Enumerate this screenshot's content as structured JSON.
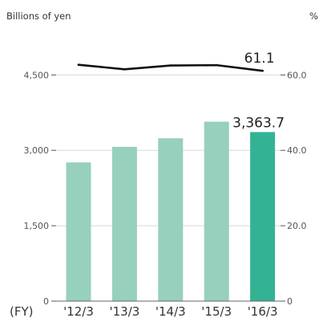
{
  "chart_data": {
    "type": "bar",
    "left_axis_label": "Billions of yen",
    "right_axis_label": "%",
    "x_prefix": "(FY)",
    "categories": [
      "'12/3",
      "'13/3",
      "'14/3",
      "'15/3",
      "'16/3"
    ],
    "bars": {
      "values": [
        2760,
        3070,
        3240,
        3570,
        3363.7
      ],
      "ylim": [
        0,
        5400
      ],
      "ticks": [
        0,
        1500,
        3000,
        4500
      ],
      "tick_labels": [
        "0",
        "1,500",
        "3,000",
        "4,500"
      ],
      "labels": [
        "",
        "",
        "",
        "",
        "3,363.7"
      ]
    },
    "line": {
      "values": [
        62.7,
        61.5,
        62.5,
        62.6,
        61.1
      ],
      "ylim": [
        0,
        72
      ],
      "ticks": [
        0,
        20,
        40,
        60
      ],
      "tick_labels": [
        "0",
        "20.0",
        "40.0",
        "60.0"
      ],
      "labels": [
        "",
        "",
        "",
        "",
        "61.1"
      ]
    },
    "colors": {
      "bar": "#97d0bc",
      "bar_highlight": "#34b394",
      "line": "#111111",
      "grid": "#d9d9d9"
    },
    "grid": true,
    "legend": "none"
  }
}
